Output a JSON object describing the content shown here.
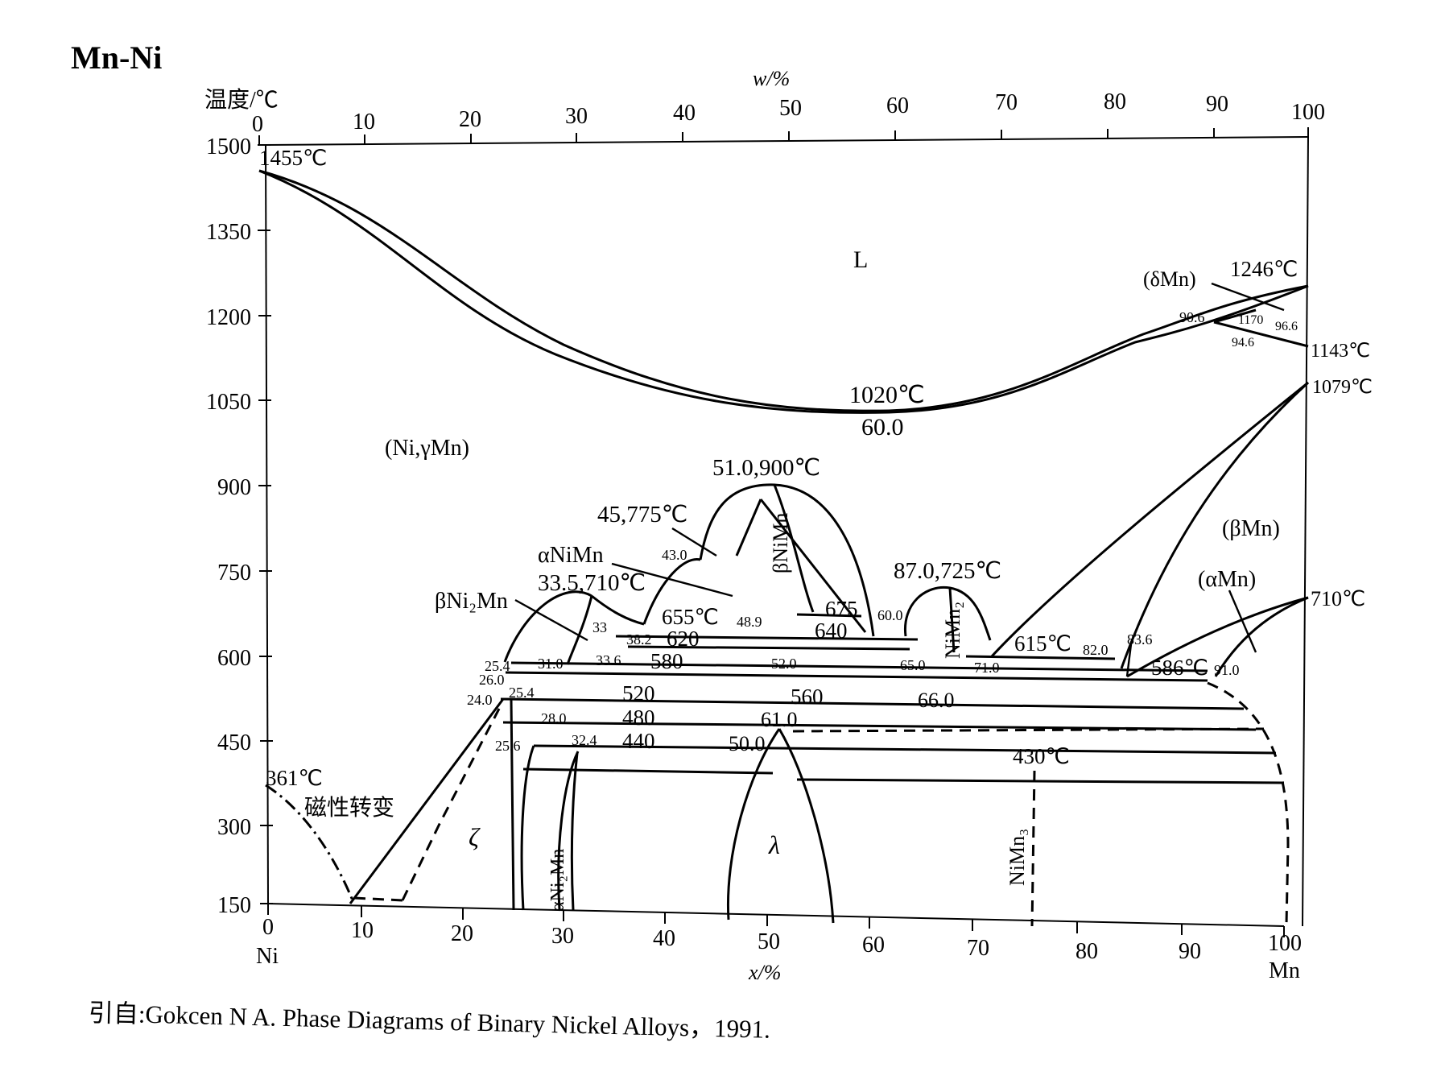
{
  "title": "Mn-Ni",
  "caption": "引自:Gokcen N A. Phase Diagrams of Binary Nickel Alloys，1991.",
  "axes": {
    "y_label": "温度/℃",
    "y_ticks": [
      "1500",
      "1350",
      "1200",
      "1050",
      "900",
      "750",
      "600",
      "450",
      "300",
      "150"
    ],
    "x_top_label": "w/%",
    "x_top_ticks": [
      "0",
      "10",
      "20",
      "30",
      "40",
      "50",
      "60",
      "70",
      "80",
      "90",
      "100"
    ],
    "x_bottom_label": "x/%",
    "x_bottom_ticks": [
      "0",
      "10",
      "20",
      "30",
      "40",
      "50",
      "60",
      "70",
      "80",
      "90",
      "100"
    ],
    "left_element": "Ni",
    "right_element": "Mn"
  },
  "phases": {
    "L": "L",
    "ni_gamma_mn": "(Ni,γMn)",
    "delta_mn": "(δMn)",
    "beta_mn": "(βMn)",
    "alpha_mn": "(αMn)",
    "beta_nimn": "βNiMn",
    "alpha_nimn": "αNiMn",
    "beta_ni2mn": "βNi₂Mn",
    "nimn2": "NiMn₂",
    "nimn3": "NiMn₃",
    "zeta": "ζ",
    "lambda": "λ",
    "alpha_ni2mn": "αNi₂Mn",
    "magnetic": "磁性转变"
  },
  "annotations": {
    "t1455": "1455℃",
    "t1246": "1246℃",
    "t1143": "1143℃",
    "t1079": "1079℃",
    "t710": "710℃",
    "t1020": "1020℃",
    "c600": "60.0",
    "c906": "90.6",
    "t1170": "1170",
    "c966": "96.6",
    "c946": "94.6",
    "p51_900": "51.0,900℃",
    "p45_775": "45,775℃",
    "p335_710": "33.5,710℃",
    "p87_725": "87.0,725℃",
    "t655": "655℃",
    "t675": "675",
    "t640": "640",
    "t620": "620",
    "t580": "580",
    "t520": "520",
    "t560": "560",
    "t480": "480",
    "t440": "440",
    "t615": "615℃",
    "t586": "586℃",
    "t430": "430℃",
    "t361": "361℃",
    "c430": "43.0",
    "c489": "48.9",
    "c600b": "60.0",
    "c33": "33",
    "c382": "38.2",
    "c336": "33.6",
    "c310": "31.0",
    "c520": "52.0",
    "c650": "65.0",
    "c710": "71.0",
    "c820": "82.0",
    "c836": "83.6",
    "c910": "91.0",
    "c254a": "25.4",
    "c260": "26.0",
    "c240": "24.0",
    "c254b": "25.4",
    "c280": "28.0",
    "c256": "25.6",
    "c324": "32.4",
    "c500": "50.0",
    "c610": "61.0",
    "c660": "66.0"
  },
  "chart_data": {
    "type": "phase diagram",
    "system": "Mn-Ni",
    "x_unit": "x/% Mn (bottom), w/% Mn (top)",
    "y_unit": "温度/℃",
    "ylim": [
      150,
      1500
    ],
    "xlim": [
      0,
      100
    ],
    "special_points": [
      {
        "label": "1455℃",
        "x": 0,
        "t": 1455
      },
      {
        "label": "1020℃",
        "x": 60.0,
        "t": 1020
      },
      {
        "label": "1246℃",
        "x": 100,
        "t": 1246
      },
      {
        "label": "1143℃",
        "x": 100,
        "t": 1143
      },
      {
        "label": "1079℃",
        "x": 100,
        "t": 1079
      },
      {
        "label": "710℃",
        "x": 100,
        "t": 710
      },
      {
        "label": "51.0,900℃",
        "x": 51.0,
        "t": 900
      },
      {
        "label": "45,775℃",
        "x": 45,
        "t": 775
      },
      {
        "label": "33.5,710℃",
        "x": 33.5,
        "t": 710
      },
      {
        "label": "87.0,725℃",
        "x": 87.0,
        "t": 725
      },
      {
        "label": "361℃",
        "x": 0,
        "t": 361
      }
    ],
    "invariant_temperatures": [
      1170,
      675,
      655,
      640,
      620,
      615,
      586,
      580,
      560,
      520,
      480,
      440,
      430
    ]
  }
}
